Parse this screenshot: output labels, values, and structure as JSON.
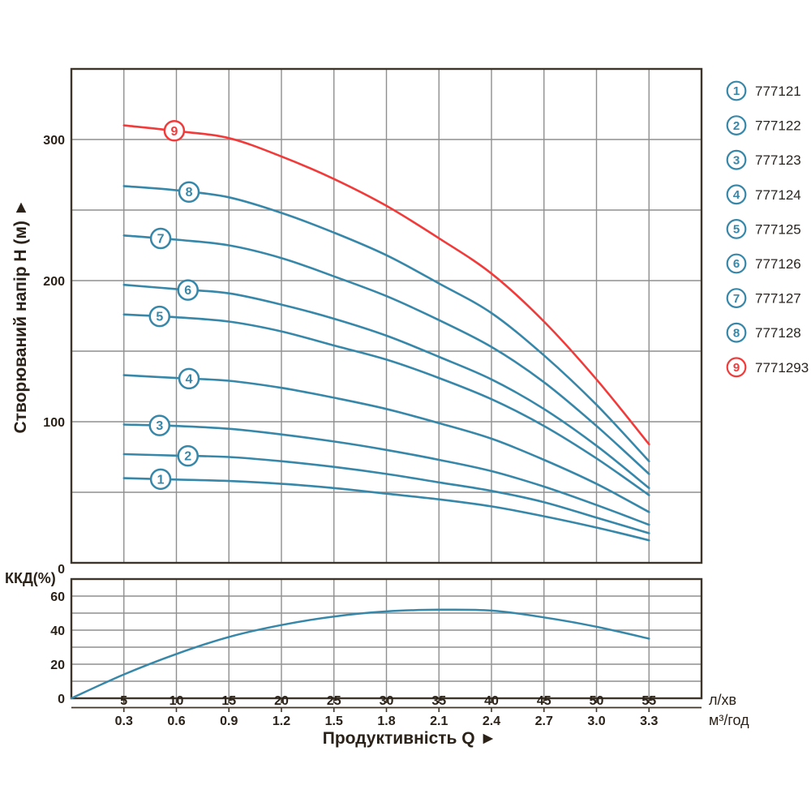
{
  "colors": {
    "curve_teal": "#3787a9",
    "curve_red": "#f13b3b",
    "grid": "#8f8f8f",
    "border": "#3e352a",
    "text": "#2a2118",
    "background": "#ffffff"
  },
  "legend": {
    "items": [
      {
        "num": "1",
        "code": "777121"
      },
      {
        "num": "2",
        "code": "777122"
      },
      {
        "num": "3",
        "code": "777123"
      },
      {
        "num": "4",
        "code": "777124"
      },
      {
        "num": "5",
        "code": "777125"
      },
      {
        "num": "6",
        "code": "777126"
      },
      {
        "num": "7",
        "code": "777127"
      },
      {
        "num": "8",
        "code": "777128"
      },
      {
        "num": "9",
        "code": "7771293"
      }
    ]
  },
  "chart_data": [
    {
      "type": "line",
      "title": "",
      "y_axis_title": "Створюваний напір H (м) ►",
      "x_axis_title": "Продуктивність  Q ►",
      "x_units_primary": "л/хв",
      "x_units_secondary": "м³/год",
      "xlim": [
        0,
        60
      ],
      "ylim": [
        0,
        350
      ],
      "grid": {
        "x_step": 5,
        "y_step": 50
      },
      "legend_position": "right",
      "y_ticks": [
        0,
        100,
        200,
        300
      ],
      "x_ticks_lmin": [
        5,
        10,
        15,
        20,
        25,
        30,
        35,
        40,
        45,
        50,
        55
      ],
      "x_ticks_m3h": [
        "0.3",
        "0.6",
        "0.9",
        "1.2",
        "1.5",
        "1.8",
        "2.1",
        "2.4",
        "2.7",
        "3.0",
        "3.3"
      ],
      "x": [
        5,
        10,
        15,
        20,
        25,
        30,
        35,
        40,
        45,
        50,
        55
      ],
      "series": [
        {
          "id": "1",
          "code": "777121",
          "color": "#3787a9",
          "label_q": 8.5,
          "H": [
            60,
            59,
            58,
            56,
            53,
            49,
            45,
            40,
            33,
            25,
            16
          ]
        },
        {
          "id": "2",
          "code": "777122",
          "color": "#3787a9",
          "label_q": 11.1,
          "H": [
            77,
            76,
            75,
            72,
            68,
            63,
            57,
            51,
            43,
            32,
            21
          ]
        },
        {
          "id": "3",
          "code": "777123",
          "color": "#3787a9",
          "label_q": 8.4,
          "H": [
            98,
            97,
            95,
            91,
            86,
            80,
            73,
            65,
            54,
            41,
            27
          ]
        },
        {
          "id": "4",
          "code": "777124",
          "color": "#3787a9",
          "label_q": 11.2,
          "H": [
            133,
            131,
            129,
            124,
            117,
            109,
            99,
            88,
            73,
            56,
            36
          ]
        },
        {
          "id": "5",
          "code": "777125",
          "color": "#3787a9",
          "label_q": 8.4,
          "H": [
            176,
            174,
            171,
            164,
            154,
            144,
            131,
            116,
            97,
            74,
            48
          ]
        },
        {
          "id": "6",
          "code": "777126",
          "color": "#3787a9",
          "label_q": 11.1,
          "H": [
            197,
            194,
            191,
            183,
            173,
            161,
            146,
            130,
            109,
            83,
            53
          ]
        },
        {
          "id": "7",
          "code": "777127",
          "color": "#3787a9",
          "label_q": 8.5,
          "H": [
            232,
            229,
            225,
            216,
            203,
            189,
            172,
            153,
            128,
            97,
            63
          ]
        },
        {
          "id": "8",
          "code": "777128",
          "color": "#3787a9",
          "label_q": 11.2,
          "H": [
            267,
            264,
            259,
            248,
            234,
            218,
            198,
            177,
            147,
            112,
            72
          ]
        },
        {
          "id": "9",
          "code": "7771293",
          "color": "#f13b3b",
          "label_q": 9.8,
          "H": [
            310,
            306,
            301,
            288,
            272,
            253,
            230,
            205,
            171,
            130,
            84
          ]
        }
      ]
    },
    {
      "type": "line",
      "title": "",
      "y_axis_title": "ККД(%)",
      "xlim": [
        0,
        60
      ],
      "ylim": [
        0,
        70
      ],
      "grid": {
        "x_step": 5,
        "y_step": 10
      },
      "y_ticks": [
        0,
        20,
        40,
        60
      ],
      "series_name": "ККД",
      "x": [
        0,
        5,
        10,
        15,
        20,
        25,
        30,
        35,
        40,
        45,
        50,
        55
      ],
      "values": [
        0,
        14,
        26,
        36,
        43,
        48,
        51,
        52,
        51.5,
        47.5,
        42,
        35
      ]
    }
  ]
}
